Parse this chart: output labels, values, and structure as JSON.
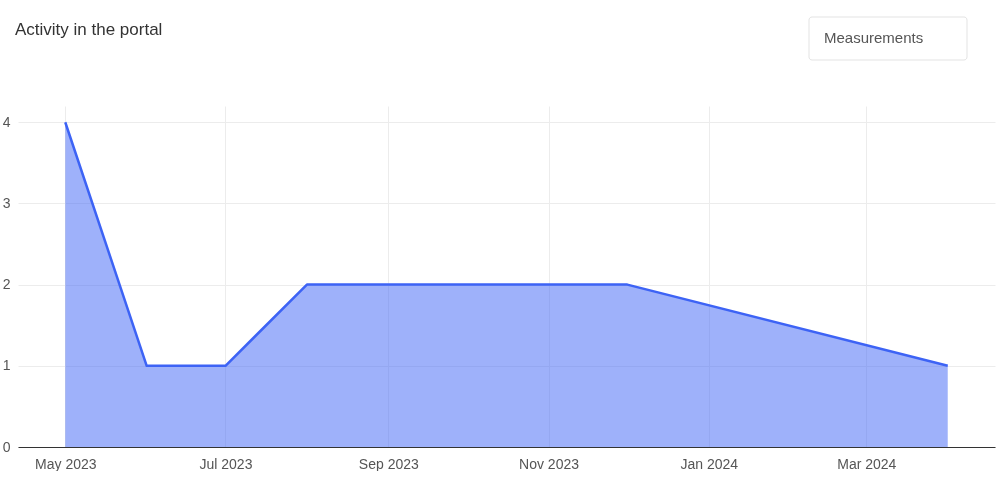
{
  "chart_data": {
    "type": "area",
    "title": "Activity in the portal",
    "annotations": [
      "Measurements"
    ],
    "x": [
      "2023-05-01",
      "2023-06-01",
      "2023-07-01",
      "2023-08-01",
      "2023-12-01",
      "2024-04-01"
    ],
    "series": [
      {
        "color": "#3d63f5",
        "values": [
          4,
          1,
          1,
          2,
          2,
          1
        ]
      }
    ],
    "xlim": [
      "2023-04-13",
      "2024-04-19"
    ],
    "xticks": [
      {
        "value": "2023-05-01",
        "label": "May 2023"
      },
      {
        "value": "2023-07-01",
        "label": "Jul 2023"
      },
      {
        "value": "2023-09-01",
        "label": "Sep 2023"
      },
      {
        "value": "2023-11-01",
        "label": "Nov 2023"
      },
      {
        "value": "2024-01-01",
        "label": "Jan 2024"
      },
      {
        "value": "2024-03-01",
        "label": "Mar 2024"
      }
    ],
    "ylim": [
      0,
      4.2
    ],
    "yticks": [
      0,
      1,
      2,
      3,
      4
    ],
    "grid": true,
    "marker": "none",
    "line_style": "solid"
  }
}
